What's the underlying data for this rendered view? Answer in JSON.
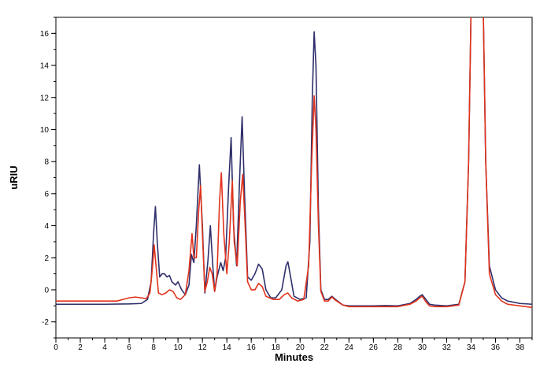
{
  "chart_data": {
    "type": "line",
    "title": "",
    "xlabel": "Minutes",
    "ylabel": "uRIU",
    "xlim": [
      0,
      39
    ],
    "ylim": [
      -3,
      17
    ],
    "x_ticks": [
      0,
      2,
      4,
      6,
      8,
      10,
      12,
      14,
      16,
      18,
      20,
      22,
      24,
      26,
      28,
      30,
      32,
      34,
      36,
      38
    ],
    "y_ticks": [
      -2,
      0,
      2,
      4,
      6,
      8,
      10,
      12,
      14,
      16
    ],
    "grid": false,
    "legend": "none",
    "series": [
      {
        "color": "#2e2f6b",
        "points": [
          [
            0,
            -0.9
          ],
          [
            2,
            -0.9
          ],
          [
            4,
            -0.9
          ],
          [
            6,
            -0.88
          ],
          [
            7,
            -0.85
          ],
          [
            7.5,
            -0.6
          ],
          [
            7.8,
            0.5
          ],
          [
            8.0,
            3.5
          ],
          [
            8.15,
            5.2
          ],
          [
            8.3,
            3.0
          ],
          [
            8.5,
            0.8
          ],
          [
            8.7,
            1.0
          ],
          [
            8.9,
            1.0
          ],
          [
            9.1,
            0.8
          ],
          [
            9.3,
            0.9
          ],
          [
            9.5,
            0.5
          ],
          [
            9.8,
            0.3
          ],
          [
            10.0,
            0.5
          ],
          [
            10.3,
            0.0
          ],
          [
            10.6,
            -0.3
          ],
          [
            10.9,
            0.3
          ],
          [
            11.1,
            2.2
          ],
          [
            11.3,
            1.7
          ],
          [
            11.5,
            4.0
          ],
          [
            11.75,
            7.8
          ],
          [
            12.0,
            4.0
          ],
          [
            12.2,
            -0.2
          ],
          [
            12.45,
            1.8
          ],
          [
            12.65,
            4.0
          ],
          [
            12.85,
            1.5
          ],
          [
            13.0,
            -0.1
          ],
          [
            13.2,
            0.8
          ],
          [
            13.5,
            1.7
          ],
          [
            13.7,
            1.2
          ],
          [
            13.9,
            2.0
          ],
          [
            14.15,
            6.5
          ],
          [
            14.35,
            9.5
          ],
          [
            14.55,
            4.0
          ],
          [
            14.8,
            1.5
          ],
          [
            15.05,
            7.0
          ],
          [
            15.25,
            10.8
          ],
          [
            15.45,
            6.0
          ],
          [
            15.7,
            0.8
          ],
          [
            16.0,
            0.6
          ],
          [
            16.3,
            1.0
          ],
          [
            16.6,
            1.6
          ],
          [
            16.9,
            1.3
          ],
          [
            17.2,
            0.0
          ],
          [
            17.6,
            -0.5
          ],
          [
            18.0,
            -0.5
          ],
          [
            18.5,
            0.0
          ],
          [
            18.85,
            1.5
          ],
          [
            19.0,
            1.75
          ],
          [
            19.2,
            0.9
          ],
          [
            19.5,
            -0.4
          ],
          [
            20.0,
            -0.6
          ],
          [
            20.5,
            -0.5
          ],
          [
            20.8,
            3.0
          ],
          [
            21.0,
            12.0
          ],
          [
            21.15,
            16.1
          ],
          [
            21.3,
            14.0
          ],
          [
            21.5,
            5.0
          ],
          [
            21.7,
            0.0
          ],
          [
            22.0,
            -0.6
          ],
          [
            22.3,
            -0.6
          ],
          [
            22.6,
            -0.4
          ],
          [
            22.9,
            -0.6
          ],
          [
            23.5,
            -0.95
          ],
          [
            24,
            -1.0
          ],
          [
            26,
            -1.0
          ],
          [
            27,
            -0.98
          ],
          [
            28,
            -1.0
          ],
          [
            29,
            -0.85
          ],
          [
            29.5,
            -0.6
          ],
          [
            29.8,
            -0.4
          ],
          [
            30.0,
            -0.3
          ],
          [
            30.3,
            -0.6
          ],
          [
            30.6,
            -0.9
          ],
          [
            31,
            -0.95
          ],
          [
            32,
            -1.0
          ],
          [
            33,
            -0.9
          ],
          [
            33.5,
            0.5
          ],
          [
            33.8,
            8.0
          ],
          [
            34.0,
            17.5
          ],
          [
            35.0,
            17.5
          ],
          [
            35.2,
            8.0
          ],
          [
            35.5,
            1.5
          ],
          [
            36.0,
            0.0
          ],
          [
            36.5,
            -0.5
          ],
          [
            37,
            -0.7
          ],
          [
            38,
            -0.85
          ],
          [
            39,
            -0.9
          ]
        ]
      },
      {
        "color": "#e2331c",
        "points": [
          [
            0,
            -0.7
          ],
          [
            2,
            -0.7
          ],
          [
            4,
            -0.7
          ],
          [
            5,
            -0.7
          ],
          [
            5.5,
            -0.6
          ],
          [
            6,
            -0.5
          ],
          [
            6.5,
            -0.45
          ],
          [
            7,
            -0.5
          ],
          [
            7.4,
            -0.55
          ],
          [
            7.7,
            -0.2
          ],
          [
            7.9,
            1.3
          ],
          [
            8.05,
            2.8
          ],
          [
            8.2,
            1.5
          ],
          [
            8.4,
            -0.2
          ],
          [
            8.7,
            -0.3
          ],
          [
            9.0,
            -0.2
          ],
          [
            9.3,
            0.0
          ],
          [
            9.6,
            -0.1
          ],
          [
            9.9,
            -0.5
          ],
          [
            10.2,
            -0.6
          ],
          [
            10.6,
            -0.3
          ],
          [
            10.9,
            1.2
          ],
          [
            11.15,
            3.5
          ],
          [
            11.3,
            2.0
          ],
          [
            11.5,
            2.0
          ],
          [
            11.7,
            5.0
          ],
          [
            11.85,
            6.5
          ],
          [
            12.0,
            3.5
          ],
          [
            12.2,
            -0.1
          ],
          [
            12.4,
            0.5
          ],
          [
            12.6,
            1.4
          ],
          [
            12.8,
            1.0
          ],
          [
            13.0,
            -0.1
          ],
          [
            13.2,
            1.0
          ],
          [
            13.4,
            5.5
          ],
          [
            13.55,
            7.3
          ],
          [
            13.75,
            3.5
          ],
          [
            14.0,
            1.0
          ],
          [
            14.2,
            3.0
          ],
          [
            14.45,
            6.8
          ],
          [
            14.6,
            3.0
          ],
          [
            14.85,
            1.5
          ],
          [
            15.1,
            5.5
          ],
          [
            15.3,
            7.2
          ],
          [
            15.5,
            4.0
          ],
          [
            15.7,
            0.5
          ],
          [
            16.0,
            0.0
          ],
          [
            16.3,
            0.0
          ],
          [
            16.6,
            0.4
          ],
          [
            16.9,
            0.2
          ],
          [
            17.2,
            -0.4
          ],
          [
            17.8,
            -0.6
          ],
          [
            18.3,
            -0.6
          ],
          [
            18.7,
            -0.3
          ],
          [
            19.0,
            -0.2
          ],
          [
            19.3,
            -0.5
          ],
          [
            19.8,
            -0.7
          ],
          [
            20.3,
            -0.6
          ],
          [
            20.7,
            1.5
          ],
          [
            20.95,
            8.0
          ],
          [
            21.15,
            12.1
          ],
          [
            21.3,
            10.0
          ],
          [
            21.5,
            4.0
          ],
          [
            21.7,
            -0.1
          ],
          [
            22.0,
            -0.7
          ],
          [
            22.3,
            -0.7
          ],
          [
            22.6,
            -0.45
          ],
          [
            22.9,
            -0.65
          ],
          [
            23.5,
            -0.95
          ],
          [
            24,
            -1.05
          ],
          [
            26,
            -1.05
          ],
          [
            27,
            -1.05
          ],
          [
            28,
            -1.05
          ],
          [
            29,
            -0.9
          ],
          [
            29.5,
            -0.7
          ],
          [
            29.8,
            -0.5
          ],
          [
            30.0,
            -0.4
          ],
          [
            30.3,
            -0.75
          ],
          [
            30.6,
            -1.0
          ],
          [
            31,
            -1.05
          ],
          [
            32,
            -1.05
          ],
          [
            33,
            -0.95
          ],
          [
            33.5,
            0.5
          ],
          [
            33.8,
            8.0
          ],
          [
            34.0,
            17.5
          ],
          [
            35.0,
            17.5
          ],
          [
            35.2,
            8.0
          ],
          [
            35.5,
            1.0
          ],
          [
            36.0,
            -0.3
          ],
          [
            36.5,
            -0.7
          ],
          [
            37,
            -0.9
          ],
          [
            38,
            -1.0
          ],
          [
            39,
            -1.1
          ]
        ]
      }
    ]
  }
}
